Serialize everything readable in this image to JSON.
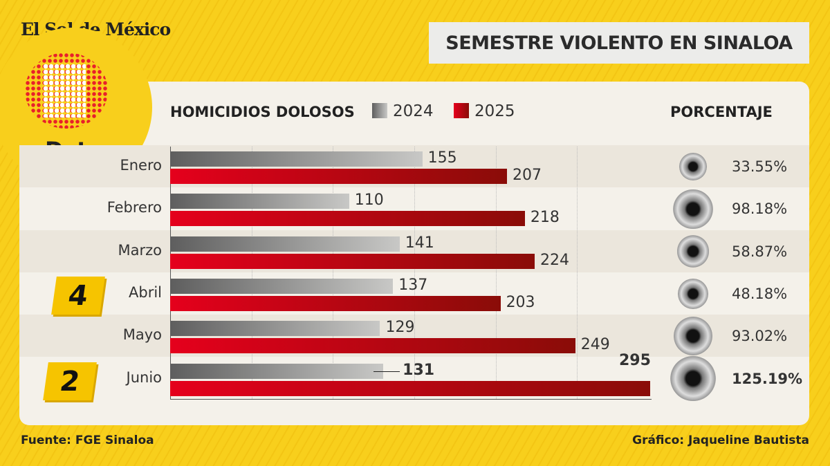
{
  "header": {
    "brand": "El Sol de México",
    "sub_brand": "Data",
    "title": "SEMESTRE VIOLENTO EN SINALOA"
  },
  "chart_data": {
    "type": "bar",
    "orientation": "horizontal",
    "title": "HOMICIDIOS DOLOSOS",
    "categories": [
      "Enero",
      "Febrero",
      "Marzo",
      "Abril",
      "Mayo",
      "Junio"
    ],
    "series": [
      {
        "name": "2024",
        "values": [
          155,
          110,
          141,
          137,
          129,
          131
        ],
        "color": "#8a8a8a"
      },
      {
        "name": "2025",
        "values": [
          207,
          218,
          224,
          203,
          249,
          295
        ],
        "color": "#c8001a"
      }
    ],
    "percent_header": "PORCENTAJE",
    "percent_change": [
      "33.55%",
      "98.18%",
      "58.87%",
      "48.18%",
      "93.02%",
      "125.19%"
    ],
    "xlim": [
      0,
      300
    ],
    "grid": true
  },
  "markers": [
    "4",
    "2"
  ],
  "footer": {
    "source": "Fuente: FGE Sinaloa",
    "credit": "Gráfico: Jaqueline Bautista"
  }
}
